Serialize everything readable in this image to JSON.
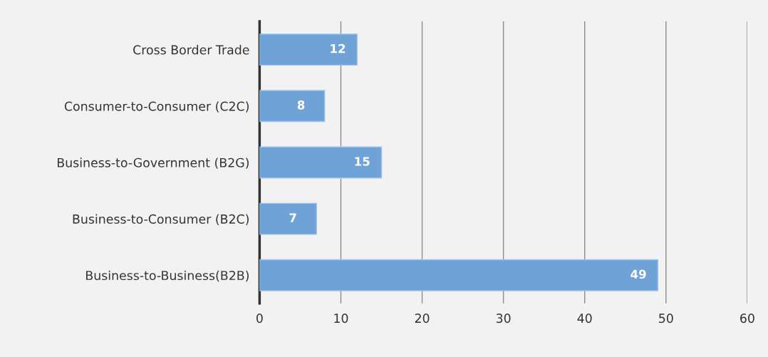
{
  "chart_data": {
    "type": "bar",
    "orientation": "horizontal",
    "categories": [
      "Cross Border Trade",
      "Consumer-to-Consumer (C2C)",
      "Business-to-Government (B2G)",
      "Business-to-Consumer (B2C)",
      "Business-to-Business(B2B)"
    ],
    "values": [
      12,
      8,
      15,
      7,
      49
    ],
    "color": "#6fa3d8",
    "xlim": [
      0,
      60
    ],
    "xticks": [
      0,
      10,
      20,
      30,
      40,
      50,
      60
    ],
    "grid": "x",
    "data_labels": true
  }
}
